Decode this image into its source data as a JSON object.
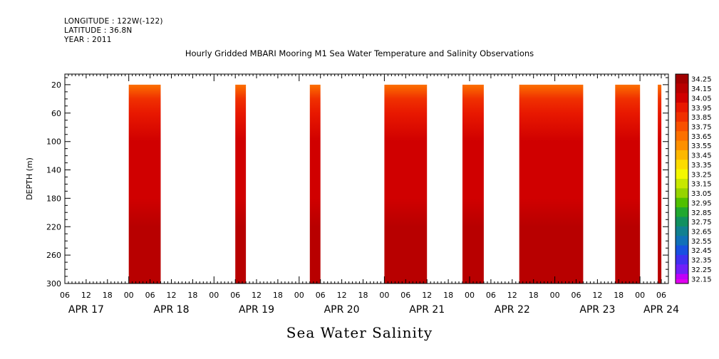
{
  "header": {
    "longitude": "LONGITUDE : 122W(-122)",
    "latitude": "LATITUDE : 36.8N",
    "year": "YEAR : 2011"
  },
  "chart_data": {
    "type": "heatmap",
    "title": "Hourly Gridded MBARI Mooring M1 Sea Water Temperature and Salinity Observations",
    "variable_label": "Sea Water Salinity",
    "ylabel": "DEPTH (m)",
    "xlabel": "",
    "y_ticks": [
      20,
      60,
      100,
      140,
      180,
      220,
      260,
      300
    ],
    "ylim": [
      300,
      5
    ],
    "x_axis": {
      "start_day": "APR 17",
      "start_hour": 6,
      "end_day": "APR 24",
      "end_hour": 8,
      "hour_ticks": [
        "06",
        "12",
        "18",
        "00",
        "06",
        "12",
        "18",
        "00",
        "06",
        "12",
        "18",
        "00",
        "06",
        "12",
        "18",
        "00",
        "06",
        "12",
        "18",
        "00",
        "06",
        "12",
        "18",
        "00",
        "06",
        "12",
        "18",
        "00",
        "06"
      ],
      "day_labels": [
        "APR 17",
        "APR 18",
        "APR 19",
        "APR 20",
        "APR 21",
        "APR 22",
        "APR 23",
        "APR 24"
      ]
    },
    "data_segments": [
      {
        "start": "APR 18 00",
        "end": "APR 18 09"
      },
      {
        "start": "APR 19 06",
        "end": "APR 19 09"
      },
      {
        "start": "APR 20 03",
        "end": "APR 20 06"
      },
      {
        "start": "APR 21 00",
        "end": "APR 21 12"
      },
      {
        "start": "APR 21 22",
        "end": "APR 22 04"
      },
      {
        "start": "APR 22 14",
        "end": "APR 23 08"
      },
      {
        "start": "APR 23 17",
        "end": "APR 24 00"
      },
      {
        "start": "APR 24 05",
        "end": "APR 24 06"
      }
    ],
    "depth_profile": [
      {
        "depth": 20,
        "value": 33.6
      },
      {
        "depth": 40,
        "value": 33.85
      },
      {
        "depth": 60,
        "value": 33.95
      },
      {
        "depth": 100,
        "value": 34.0
      },
      {
        "depth": 140,
        "value": 34.02
      },
      {
        "depth": 180,
        "value": 34.05
      },
      {
        "depth": 220,
        "value": 34.1
      },
      {
        "depth": 260,
        "value": 34.18
      },
      {
        "depth": 300,
        "value": 34.12
      }
    ],
    "colorbar": {
      "levels": [
        "34.25",
        "34.15",
        "34.05",
        "33.95",
        "33.85",
        "33.75",
        "33.65",
        "33.55",
        "33.45",
        "33.35",
        "33.25",
        "33.15",
        "33.05",
        "32.95",
        "32.85",
        "32.75",
        "32.65",
        "32.55",
        "32.45",
        "32.35",
        "32.25",
        "32.15"
      ],
      "colors": [
        "#a00000",
        "#b80000",
        "#d00000",
        "#e81800",
        "#f03000",
        "#f85000",
        "#fc7000",
        "#fd9000",
        "#fdb800",
        "#fcdc00",
        "#f4f800",
        "#c8e800",
        "#96d400",
        "#50c000",
        "#20a830",
        "#109060",
        "#108090",
        "#1070b8",
        "#1850e0",
        "#4030f0",
        "#7020f8",
        "#c000f8"
      ],
      "bottom_color": "#e000f0"
    },
    "grid": false,
    "legend": "right colorbar"
  }
}
